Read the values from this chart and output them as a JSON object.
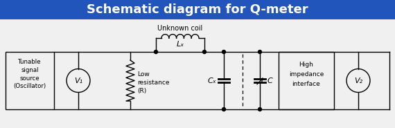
{
  "title": "Schematic diagram for Q-meter",
  "title_bg": "#2255bb",
  "title_color": "#ffffff",
  "bg_color": "#f0f0f0",
  "line_color": "#000000",
  "text_color": "#000000",
  "box1_label": [
    "Tunable",
    "signal",
    "source",
    "(Oscillator)"
  ],
  "box2_label": [
    "High",
    "impedance",
    "interface"
  ],
  "V1_label": "V₁",
  "V2_label": "V₂",
  "R_label": [
    "Low",
    "resistance",
    "(R)"
  ],
  "Lx_label": "Lₓ",
  "Cx_label": "Cₓ",
  "C_label": "C",
  "unknown_coil_label": "Unknown coil",
  "figsize": [
    5.7,
    1.85
  ],
  "dpi": 100
}
